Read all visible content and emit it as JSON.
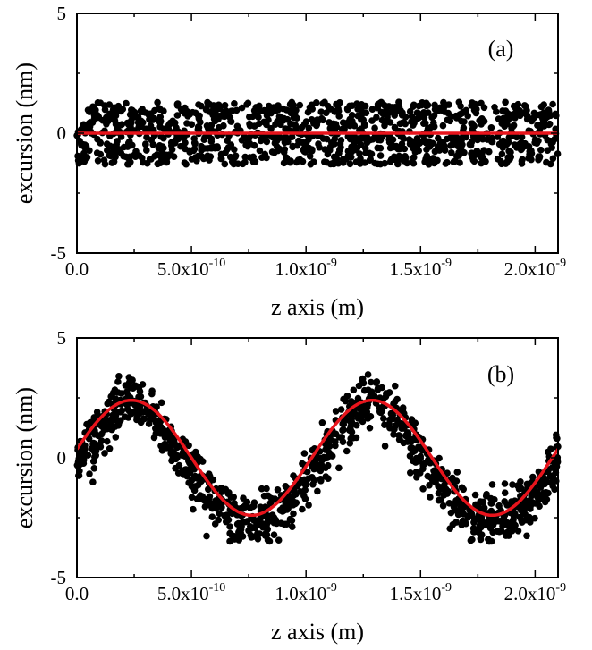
{
  "chart_data": [
    {
      "type": "scatter",
      "panel_label": "(a)",
      "xlabel": "z axis (m)",
      "ylabel": "excursion (nm)",
      "xlim": [
        0,
        2.1e-09
      ],
      "ylim": [
        -5,
        5
      ],
      "x_ticks": [
        {
          "value": 0,
          "mantissa": "0.0",
          "exp": ""
        },
        {
          "value": 5e-10,
          "mantissa": "5.0x10",
          "exp": "-10"
        },
        {
          "value": 1e-09,
          "mantissa": "1.0x10",
          "exp": "-9"
        },
        {
          "value": 1.5e-09,
          "mantissa": "1.5x10",
          "exp": "-9"
        },
        {
          "value": 2e-09,
          "mantissa": "2.0x10",
          "exp": "-9"
        }
      ],
      "y_ticks": [
        {
          "value": -5,
          "label": "-5"
        },
        {
          "value": 0,
          "label": "0"
        },
        {
          "value": 5,
          "label": "5"
        }
      ],
      "scatter": {
        "color": "#000000",
        "n_points": 1100,
        "x_range": [
          0,
          2.1e-09
        ],
        "y_band": [
          -1.3,
          1.3
        ]
      },
      "fit_line": {
        "color": "#e8141c",
        "function": "constant",
        "amplitude": 0
      }
    },
    {
      "type": "scatter",
      "panel_label": "(b)",
      "xlabel": "z axis (m)",
      "ylabel": "excursion (nm)",
      "xlim": [
        0,
        2.1e-09
      ],
      "ylim": [
        -5,
        5
      ],
      "x_ticks": [
        {
          "value": 0,
          "mantissa": "0.0",
          "exp": ""
        },
        {
          "value": 5e-10,
          "mantissa": "5.0x10",
          "exp": "-10"
        },
        {
          "value": 1e-09,
          "mantissa": "1.0x10",
          "exp": "-9"
        },
        {
          "value": 1.5e-09,
          "mantissa": "1.5x10",
          "exp": "-9"
        },
        {
          "value": 2e-09,
          "mantissa": "2.0x10",
          "exp": "-9"
        }
      ],
      "y_ticks": [
        {
          "value": -5,
          "label": "-5"
        },
        {
          "value": 0,
          "label": "0"
        },
        {
          "value": 5,
          "label": "5"
        }
      ],
      "scatter": {
        "color": "#000000",
        "n_points": 1100,
        "x_range": [
          0,
          2.1e-09
        ],
        "spread_nm": 1.0
      },
      "fit_line": {
        "color": "#e8141c",
        "function": "sine",
        "amplitude": 2.4,
        "wavelength": 1.05e-09,
        "phase_shift_m": 2.5e-11
      }
    }
  ]
}
